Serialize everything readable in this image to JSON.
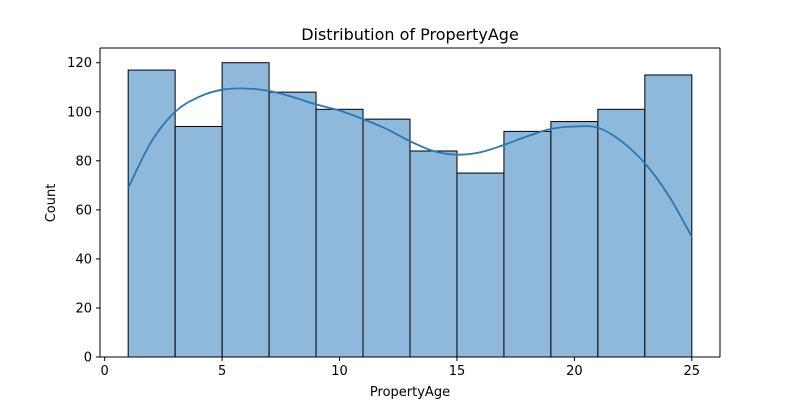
{
  "chart_data": {
    "type": "bar",
    "title": "Distribution of PropertyAge",
    "xlabel": "PropertyAge",
    "ylabel": "Count",
    "xlim": [
      -0.2,
      26.2
    ],
    "ylim": [
      0,
      126
    ],
    "xticks": [
      0,
      5,
      10,
      15,
      20,
      25
    ],
    "yticks": [
      0,
      20,
      40,
      60,
      80,
      100,
      120
    ],
    "bins": [
      {
        "x0": 1,
        "x1": 3,
        "value": 117
      },
      {
        "x0": 3,
        "x1": 5,
        "value": 94
      },
      {
        "x0": 5,
        "x1": 7,
        "value": 120
      },
      {
        "x0": 7,
        "x1": 9,
        "value": 108
      },
      {
        "x0": 9,
        "x1": 11,
        "value": 101
      },
      {
        "x0": 11,
        "x1": 13,
        "value": 97
      },
      {
        "x0": 13,
        "x1": 15,
        "value": 84
      },
      {
        "x0": 15,
        "x1": 17,
        "value": 75
      },
      {
        "x0": 17,
        "x1": 19,
        "value": 92
      },
      {
        "x0": 19,
        "x1": 21,
        "value": 96
      },
      {
        "x0": 21,
        "x1": 23,
        "value": 101
      },
      {
        "x0": 23,
        "x1": 25,
        "value": 115
      }
    ],
    "kde": {
      "x": [
        1,
        2,
        3,
        4,
        5,
        6,
        7,
        8,
        9,
        10,
        11,
        12,
        13,
        14,
        15,
        16,
        17,
        18,
        19,
        20,
        21,
        22,
        23,
        24,
        25
      ],
      "y": [
        69,
        88,
        100,
        106,
        109,
        109.5,
        108.5,
        106,
        103,
        100.5,
        97,
        93,
        88,
        84,
        82.5,
        83.5,
        86.5,
        90,
        93,
        94,
        93.5,
        88,
        79,
        66,
        49
      ]
    },
    "colors": {
      "bar_fill": "#8fb9da",
      "bar_edge": "#000000",
      "kde_line": "#2a77b4"
    },
    "grid": false,
    "legend": "none"
  }
}
